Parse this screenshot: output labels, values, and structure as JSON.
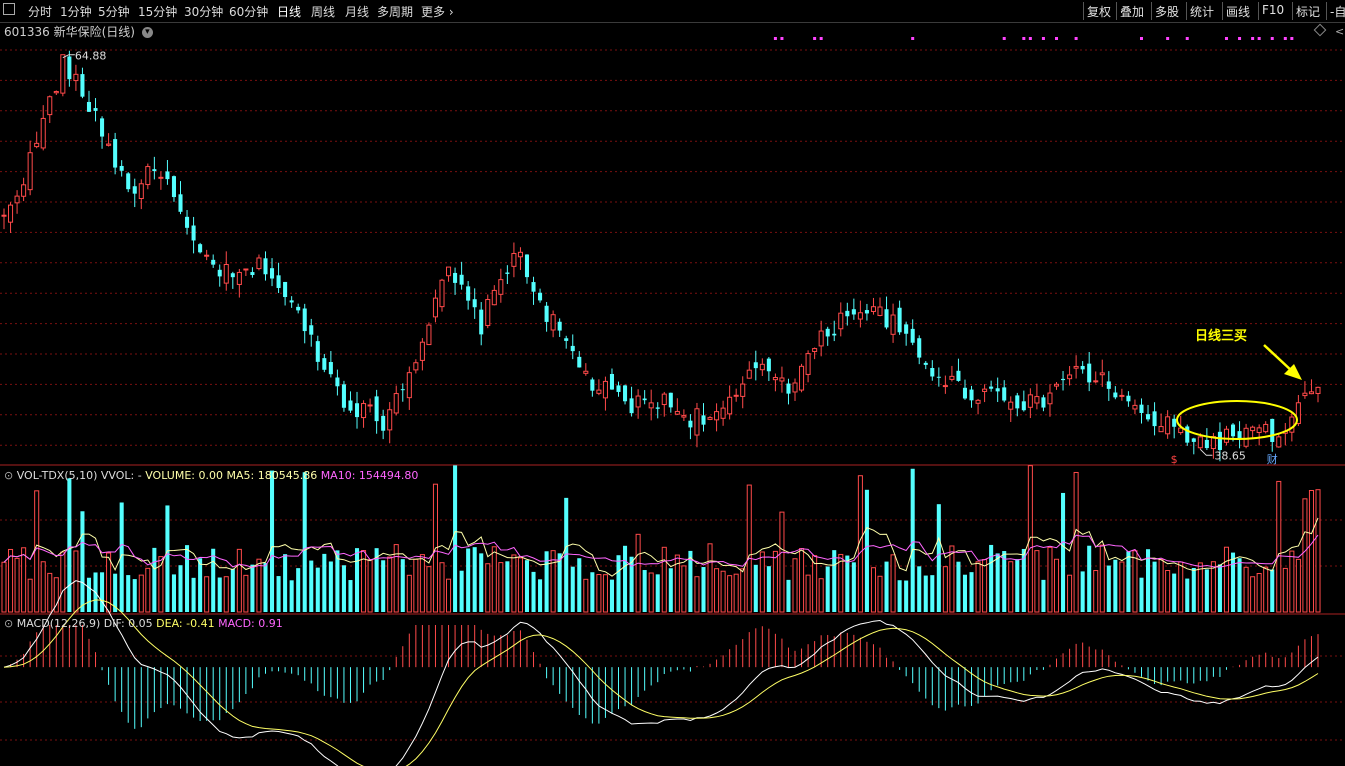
{
  "toolbar": {
    "periods": [
      "分时",
      "1分钟",
      "5分钟",
      "15分钟",
      "30分钟",
      "60分钟",
      "日线",
      "周线",
      "月线",
      "多周期",
      "更多"
    ],
    "active": "日线",
    "right": [
      "复权",
      "叠加",
      "多股",
      "统计",
      "画线",
      "F10",
      "标记",
      "-自"
    ]
  },
  "main_panel": {
    "code_title": "601336 新华保险(日线)",
    "high_label": "64.88",
    "low_label": "38.65",
    "annotation": "日线三买",
    "marker_s": "$",
    "marker_cai": "财"
  },
  "vol_panel": {
    "name": "VOL-TDX(5,10)",
    "vvol": "VVOL: -",
    "volume": "VOLUME: 0.00",
    "ma5": "MA5: 180545.86",
    "ma10": "MA10: 154494.80"
  },
  "macd_panel": {
    "name": "MACD(12,26,9)",
    "dif": "DIF: 0.05",
    "dea": "DEA: -0.41",
    "macd": "MACD: 0.91"
  },
  "colors": {
    "up": "#ff4a4a",
    "down": "#54ffff",
    "ma5": "#ffffaa",
    "ma10": "#ff66ff",
    "dif": "#ffffff",
    "dea": "#ffff66",
    "annotation": "#ffff00",
    "grid": "#7a1010"
  },
  "chart_data": {
    "type": "candlestick",
    "anchors": [
      [
        0,
        54
      ],
      [
        4,
        58
      ],
      [
        9,
        64.5
      ],
      [
        14,
        61
      ],
      [
        19,
        56
      ],
      [
        24,
        57.5
      ],
      [
        29,
        52
      ],
      [
        35,
        50
      ],
      [
        40,
        51
      ],
      [
        45,
        47.5
      ],
      [
        52,
        42
      ],
      [
        58,
        40.5
      ],
      [
        63,
        45
      ],
      [
        68,
        50.5
      ],
      [
        73,
        47
      ],
      [
        78,
        52
      ],
      [
        84,
        47
      ],
      [
        90,
        43
      ],
      [
        96,
        41.5
      ],
      [
        100,
        42
      ],
      [
        105,
        40.8
      ],
      [
        110,
        41
      ],
      [
        116,
        44.5
      ],
      [
        120,
        43
      ],
      [
        126,
        46.5
      ],
      [
        130,
        48.2
      ],
      [
        135,
        47.5
      ],
      [
        141,
        44.3
      ],
      [
        147,
        42.5
      ],
      [
        152,
        42.5
      ],
      [
        158,
        41.5
      ],
      [
        163,
        43.8
      ],
      [
        168,
        43.3
      ],
      [
        174,
        40.8
      ],
      [
        180,
        39.8
      ],
      [
        184,
        39
      ],
      [
        190,
        39.8
      ],
      [
        196,
        39.5
      ],
      [
        199,
        42.5
      ],
      [
        201,
        42.8
      ]
    ],
    "price_range": [
      37.8,
      66.2
    ],
    "high": 64.88,
    "low": 38.65,
    "num_bars": 202,
    "volume_range": [
      0,
      390000
    ],
    "macd_range": [
      -2.7,
      1.2
    ]
  }
}
